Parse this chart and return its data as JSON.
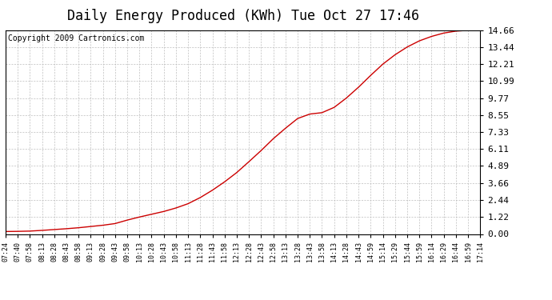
{
  "title": "Daily Energy Produced (KWh) Tue Oct 27 17:46",
  "copyright": "Copyright 2009 Cartronics.com",
  "line_color": "#cc0000",
  "bg_color": "#ffffff",
  "plot_bg_color": "#ffffff",
  "grid_color": "#bbbbbb",
  "yticks": [
    0.0,
    1.22,
    2.44,
    3.66,
    4.89,
    6.11,
    7.33,
    8.55,
    9.77,
    10.99,
    12.21,
    13.44,
    14.66
  ],
  "ymax": 14.66,
  "xtick_labels": [
    "07:24",
    "07:40",
    "07:58",
    "08:13",
    "08:28",
    "08:43",
    "08:58",
    "09:13",
    "09:28",
    "09:43",
    "09:58",
    "10:13",
    "10:28",
    "10:43",
    "10:58",
    "11:13",
    "11:28",
    "11:43",
    "11:58",
    "12:13",
    "12:28",
    "12:43",
    "12:58",
    "13:13",
    "13:28",
    "13:43",
    "13:58",
    "14:13",
    "14:28",
    "14:43",
    "14:59",
    "15:14",
    "15:29",
    "15:44",
    "15:59",
    "16:14",
    "16:29",
    "16:44",
    "16:59",
    "17:14"
  ],
  "curve_x": [
    0,
    1,
    2,
    3,
    4,
    5,
    6,
    7,
    8,
    9,
    10,
    11,
    12,
    13,
    14,
    15,
    16,
    17,
    18,
    19,
    20,
    21,
    22,
    23,
    24,
    25,
    26,
    27,
    28,
    29,
    30,
    31,
    32,
    33,
    34,
    35,
    36,
    37,
    38,
    39
  ],
  "curve_y": [
    0.18,
    0.19,
    0.21,
    0.26,
    0.32,
    0.38,
    0.45,
    0.54,
    0.63,
    0.75,
    1.0,
    1.22,
    1.42,
    1.62,
    1.87,
    2.18,
    2.62,
    3.15,
    3.75,
    4.42,
    5.2,
    6.0,
    6.85,
    7.6,
    8.3,
    8.62,
    8.72,
    9.1,
    9.77,
    10.55,
    11.4,
    12.21,
    12.88,
    13.44,
    13.88,
    14.2,
    14.44,
    14.58,
    14.64,
    14.66
  ],
  "title_fontsize": 12,
  "ytick_fontsize": 8,
  "xtick_fontsize": 6,
  "copyright_fontsize": 7
}
